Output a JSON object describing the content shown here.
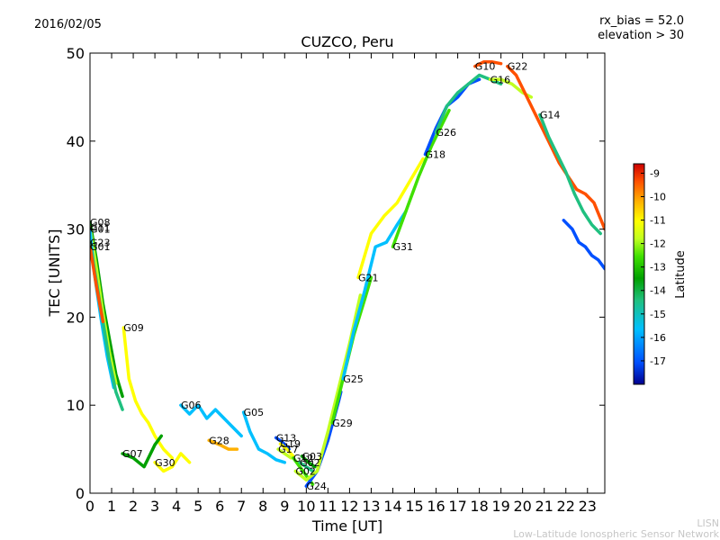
{
  "header": {
    "date": "2016/02/05",
    "title": "CUZCO, Peru",
    "rx_bias": "rx_bias = 52.0",
    "elevation": "elevation > 30"
  },
  "credit": {
    "line1": "LISN",
    "line2": "Low-Latitude Ionospheric Sensor Network"
  },
  "chart_data": {
    "type": "line",
    "title": "CUZCO, Peru",
    "xlabel": "Time [UT]",
    "ylabel": "TEC [UNITS]",
    "xlim": [
      0,
      23.8
    ],
    "ylim": [
      0,
      50
    ],
    "xticks": [
      "0",
      "1",
      "2",
      "3",
      "4",
      "5",
      "6",
      "7",
      "8",
      "9",
      "10",
      "11",
      "12",
      "13",
      "14",
      "15",
      "16",
      "17",
      "18",
      "19",
      "20",
      "21",
      "22",
      "23"
    ],
    "yticks": [
      "0",
      "10",
      "20",
      "30",
      "40",
      "50"
    ],
    "colorbar": {
      "label": "Latitude",
      "min": -18,
      "max": -8.6,
      "ticks": [
        "-9",
        "-10",
        "-11",
        "-12",
        "-13",
        "-14",
        "-15",
        "-16",
        "-17"
      ],
      "colors": [
        "#00008f",
        "#0050ff",
        "#00c0ff",
        "#20c080",
        "#00a000",
        "#40e000",
        "#c0ff20",
        "#ffff00",
        "#ffb000",
        "#ff5000",
        "#cc0000"
      ]
    },
    "series": [
      {
        "name": "G08",
        "lat": -14.0,
        "x": [
          0.0,
          0.3,
          0.6,
          0.9,
          1.2,
          1.5
        ],
        "y": [
          30.8,
          26.5,
          21.5,
          17.5,
          13.5,
          11.0
        ]
      },
      {
        "name": "G11",
        "lat": -12.5,
        "x": [
          0.0,
          0.3,
          0.6,
          0.9,
          1.2
        ],
        "y": [
          30.2,
          25.5,
          20.5,
          16.0,
          12.5
        ]
      },
      {
        "name": "G01",
        "lat": -16.0,
        "x": [
          0.0,
          0.2,
          0.5,
          0.8,
          1.1
        ],
        "y": [
          30.0,
          25.0,
          20.0,
          15.5,
          12.0
        ]
      },
      {
        "name": "G23",
        "lat": -15.5,
        "x": [
          0.0,
          0.3,
          0.6,
          0.9,
          1.2,
          1.5
        ],
        "y": [
          28.5,
          24.0,
          19.5,
          15.0,
          11.5,
          9.5
        ]
      },
      {
        "name": "G01",
        "lat": -10.0,
        "x": [
          0.0,
          0.3,
          0.6
        ],
        "y": [
          28.0,
          23.5,
          19.5
        ]
      },
      {
        "name": "G09",
        "lat": -11.5,
        "x": [
          1.55,
          1.8,
          2.1,
          2.4,
          2.7,
          3.0,
          3.4,
          3.8
        ],
        "y": [
          18.8,
          13.0,
          10.5,
          9.0,
          8.0,
          6.5,
          5.0,
          4.0
        ]
      },
      {
        "name": "G07",
        "lat": -14.0,
        "x": [
          1.5,
          2.0,
          2.5,
          3.0,
          3.3
        ],
        "y": [
          4.5,
          4.0,
          3.0,
          5.5,
          6.5
        ]
      },
      {
        "name": "G30",
        "lat": -11.0,
        "x": [
          3.0,
          3.4,
          3.8,
          4.2,
          4.6
        ],
        "y": [
          3.5,
          2.5,
          3.0,
          4.5,
          3.5
        ]
      },
      {
        "name": "G06",
        "lat": -16.5,
        "x": [
          4.2,
          4.6,
          5.0,
          5.4,
          5.8,
          6.2,
          6.6,
          7.0
        ],
        "y": [
          10.0,
          9.0,
          10.0,
          8.5,
          9.5,
          8.5,
          7.5,
          6.5
        ]
      },
      {
        "name": "G28",
        "lat": -10.5,
        "x": [
          5.5,
          6.0,
          6.4,
          6.8
        ],
        "y": [
          6.0,
          5.5,
          5.0,
          5.0
        ]
      },
      {
        "name": "G05",
        "lat": -16.0,
        "x": [
          7.1,
          7.4,
          7.8,
          8.2,
          8.6,
          9.0
        ],
        "y": [
          9.2,
          7.0,
          5.0,
          4.5,
          3.8,
          3.5
        ]
      },
      {
        "name": "G13",
        "lat": -17.5,
        "x": [
          8.6,
          8.9,
          9.2
        ],
        "y": [
          6.3,
          5.8,
          5.0
        ]
      },
      {
        "name": "G19",
        "lat": -11.0,
        "x": [
          8.8,
          9.1,
          9.4
        ],
        "y": [
          5.6,
          5.0,
          4.2
        ]
      },
      {
        "name": "G17",
        "lat": -12.0,
        "x": [
          8.7,
          9.0,
          9.3
        ],
        "y": [
          5.0,
          4.5,
          4.0
        ]
      },
      {
        "name": "G12",
        "lat": -13.0,
        "x": [
          9.4,
          9.7,
          10.0,
          10.3
        ],
        "y": [
          4.0,
          3.0,
          2.0,
          1.0
        ]
      },
      {
        "name": "G03",
        "lat": -14.5,
        "x": [
          9.8,
          10.1,
          10.4
        ],
        "y": [
          4.2,
          3.5,
          3.0
        ]
      },
      {
        "name": "G02",
        "lat": -15.0,
        "x": [
          9.7,
          10.0,
          10.3
        ],
        "y": [
          3.5,
          3.0,
          2.5
        ]
      },
      {
        "name": "G24",
        "lat": -17.5,
        "x": [
          10.0,
          10.5,
          11.0,
          11.5,
          11.6
        ],
        "y": [
          0.8,
          2.5,
          6.0,
          10.5,
          11.5
        ]
      },
      {
        "name": "G02",
        "lat": -12.0,
        "x": [
          9.5,
          10.0,
          10.5,
          11.0,
          11.5,
          12.0,
          12.5
        ],
        "y": [
          2.5,
          1.5,
          2.5,
          7.0,
          12.0,
          17.0,
          22.5
        ]
      },
      {
        "name": "G29",
        "lat": -13.5,
        "x": [
          11.2,
          11.7,
          12.2,
          12.7,
          13.0
        ],
        "y": [
          8.0,
          13.0,
          18.0,
          22.0,
          24.5
        ]
      },
      {
        "name": "G25",
        "lat": -16.5,
        "x": [
          11.7,
          12.2,
          12.7,
          13.2,
          13.7,
          14.2,
          14.6
        ],
        "y": [
          13.0,
          18.5,
          23.0,
          28.0,
          28.5,
          30.5,
          32.0
        ]
      },
      {
        "name": "G21",
        "lat": -11.0,
        "x": [
          12.4,
          13.0,
          13.6,
          14.2,
          14.8,
          15.4
        ],
        "y": [
          24.5,
          29.5,
          31.5,
          33.0,
          35.5,
          38.0
        ]
      },
      {
        "name": "G31",
        "lat": -13.5,
        "x": [
          14.0,
          14.6,
          15.2,
          15.8,
          16.3,
          16.6
        ],
        "y": [
          28.0,
          32.0,
          36.0,
          39.5,
          42.0,
          43.5
        ]
      },
      {
        "name": "G18",
        "lat": -17.0,
        "x": [
          15.5,
          16.0,
          16.5,
          17.0,
          17.5,
          18.0
        ],
        "y": [
          38.5,
          41.5,
          44.0,
          45.0,
          46.5,
          47.0
        ]
      },
      {
        "name": "G26",
        "lat": -15.0,
        "x": [
          16.0,
          16.5,
          17.0,
          17.5,
          18.0,
          18.5,
          19.0
        ],
        "y": [
          41.0,
          44.0,
          45.5,
          46.5,
          47.5,
          47.0,
          46.5
        ]
      },
      {
        "name": "G10",
        "lat": -9.5,
        "x": [
          17.8,
          18.2,
          18.6,
          19.0
        ],
        "y": [
          48.5,
          49.0,
          49.0,
          48.8
        ]
      },
      {
        "name": "G16",
        "lat": -12.5,
        "x": [
          18.5,
          19.0,
          19.5,
          20.0,
          20.4
        ],
        "y": [
          47.0,
          47.0,
          46.5,
          45.5,
          45.0
        ]
      },
      {
        "name": "G22",
        "lat": -10.0,
        "x": [
          19.3,
          19.7,
          20.1,
          20.5,
          20.9,
          21.3,
          21.7,
          22.1,
          22.5,
          22.9,
          23.3,
          23.8
        ],
        "y": [
          48.5,
          47.5,
          45.5,
          43.5,
          41.5,
          39.5,
          37.5,
          36.0,
          34.5,
          34.0,
          33.0,
          30.0
        ]
      },
      {
        "name": "G14",
        "lat": -15.0,
        "x": [
          20.8,
          21.2,
          21.6,
          22.0,
          22.4,
          22.8,
          23.2,
          23.6
        ],
        "y": [
          43.0,
          40.5,
          38.5,
          36.5,
          34.0,
          32.0,
          30.5,
          29.5
        ]
      },
      {
        "name": "",
        "lat": -17.5,
        "x": [
          21.9,
          22.3,
          22.6,
          22.9,
          23.2,
          23.5,
          23.8
        ],
        "y": [
          31.0,
          30.0,
          28.5,
          28.0,
          27.0,
          26.5,
          25.5
        ]
      }
    ]
  }
}
